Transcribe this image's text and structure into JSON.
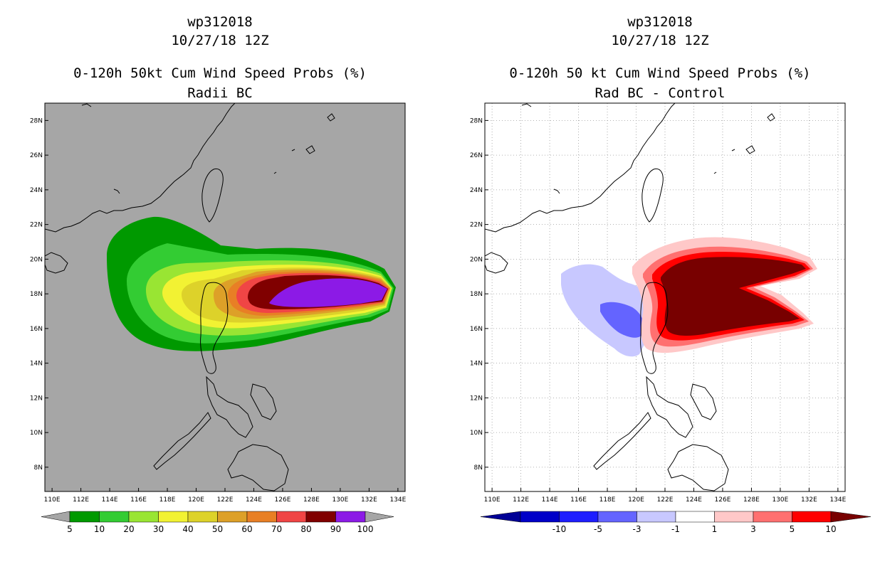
{
  "left_panel": {
    "title_line1": "wp312018",
    "title_line2": "10/27/18 12Z",
    "title_line3": "0-120h 50kt Cum Wind Speed Probs (%)",
    "title_line4": "Radii BC",
    "background_color": "#a6a6a6",
    "colorbar": {
      "labels": [
        "5",
        "10",
        "20",
        "30",
        "40",
        "50",
        "60",
        "70",
        "80",
        "90",
        "100"
      ],
      "colors": [
        "#009900",
        "#33cc33",
        "#99e533",
        "#f2f233",
        "#ddd22a",
        "#dda028",
        "#e87f25",
        "#f04545",
        "#800000",
        "#8c1ae6"
      ],
      "end_color": "#a6a6a6"
    }
  },
  "right_panel": {
    "title_line1": "wp312018",
    "title_line2": "10/27/18 12Z",
    "title_line3": "0-120h 50 kt Cum Wind Speed Probs (%)",
    "title_line4": "Rad BC - Control",
    "colorbar": {
      "labels": [
        "-10",
        "-5",
        "-3",
        "-1",
        "1",
        "3",
        "5",
        "10"
      ],
      "colors": [
        "#0000c8",
        "#1e1eff",
        "#6464ff",
        "#c8c8ff",
        "#ffffff",
        "#ffc8c8",
        "#ff7070",
        "#ff0000"
      ],
      "left_end_color": "#000096",
      "right_end_color": "#780000"
    }
  },
  "axes": {
    "x_ticks": [
      "110E",
      "112E",
      "114E",
      "116E",
      "118E",
      "120E",
      "122E",
      "124E",
      "126E",
      "128E",
      "130E",
      "132E",
      "134E"
    ],
    "y_ticks": [
      "28N",
      "26N",
      "24N",
      "22N",
      "20N",
      "18N",
      "16N",
      "14N",
      "12N",
      "10N",
      "8N"
    ],
    "lon_range": [
      109.5,
      134.5
    ],
    "lat_range": [
      6.6,
      29.0
    ]
  }
}
